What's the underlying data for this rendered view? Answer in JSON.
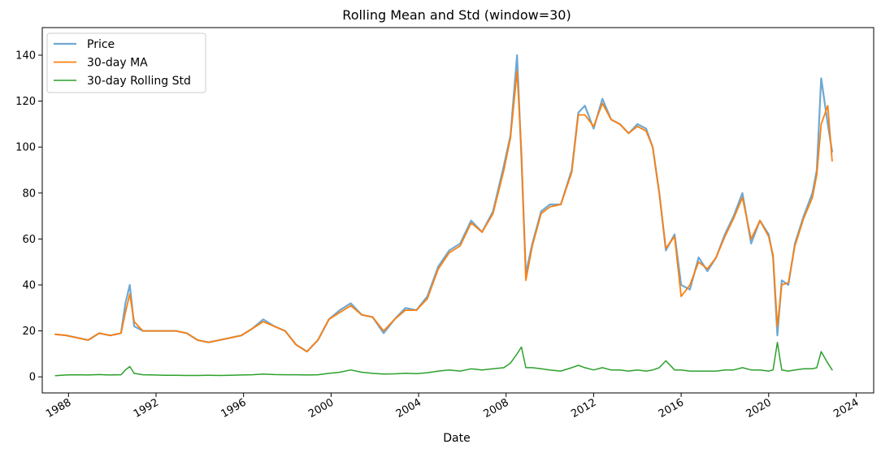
{
  "chart_data": {
    "type": "line",
    "title": "Rolling Mean and Std (window=30)",
    "xlabel": "Date",
    "ylabel": "",
    "xlim": [
      1986.8,
      2024.8
    ],
    "ylim": [
      -7,
      152
    ],
    "x_ticks": [
      1988,
      1992,
      1996,
      2000,
      2004,
      2008,
      2012,
      2016,
      2020,
      2024
    ],
    "y_ticks": [
      0,
      20,
      40,
      60,
      80,
      100,
      120,
      140
    ],
    "grid": false,
    "legend": "upper-left",
    "x": [
      1987.4,
      1987.9,
      1988.4,
      1988.9,
      1989.4,
      1989.9,
      1990.4,
      1990.6,
      1990.8,
      1991.0,
      1991.4,
      1991.9,
      1992.4,
      1992.9,
      1993.4,
      1993.9,
      1994.4,
      1994.9,
      1995.4,
      1995.9,
      1996.4,
      1996.9,
      1997.4,
      1997.9,
      1998.4,
      1998.9,
      1999.4,
      1999.9,
      2000.4,
      2000.9,
      2001.4,
      2001.9,
      2002.4,
      2002.9,
      2003.4,
      2003.9,
      2004.4,
      2004.9,
      2005.4,
      2005.9,
      2006.4,
      2006.9,
      2007.4,
      2007.9,
      2008.2,
      2008.5,
      2008.7,
      2008.9,
      2009.2,
      2009.6,
      2010.0,
      2010.5,
      2011.0,
      2011.3,
      2011.6,
      2012.0,
      2012.4,
      2012.8,
      2013.2,
      2013.6,
      2014.0,
      2014.4,
      2014.7,
      2015.0,
      2015.3,
      2015.7,
      2016.0,
      2016.4,
      2016.8,
      2017.2,
      2017.6,
      2018.0,
      2018.4,
      2018.8,
      2019.2,
      2019.6,
      2020.0,
      2020.2,
      2020.4,
      2020.6,
      2020.9,
      2021.2,
      2021.6,
      2022.0,
      2022.2,
      2022.4,
      2022.7,
      2022.9
    ],
    "series": [
      {
        "name": "Price",
        "color": "#6fa8d2",
        "values": [
          18.5,
          18,
          17,
          16,
          19,
          18,
          19,
          32,
          40,
          22,
          20,
          20,
          20,
          20,
          19,
          16,
          15,
          16,
          17,
          18,
          21,
          25,
          22,
          20,
          14,
          11,
          16,
          25,
          29,
          32,
          27,
          26,
          19,
          25,
          30,
          29,
          35,
          48,
          55,
          58,
          68,
          63,
          72,
          92,
          105,
          140,
          95,
          45,
          58,
          72,
          75,
          75,
          90,
          115,
          118,
          108,
          121,
          112,
          110,
          106,
          110,
          108,
          100,
          80,
          55,
          62,
          40,
          38,
          52,
          46,
          52,
          62,
          70,
          80,
          58,
          68,
          62,
          52,
          18,
          42,
          40,
          58,
          70,
          80,
          90,
          130,
          110,
          98
        ],
        "width": 2.2
      },
      {
        "name": "30-day MA",
        "color": "#ff7f0e",
        "values": [
          18.5,
          18,
          17,
          16,
          19,
          18,
          19,
          28,
          36,
          24,
          20,
          20,
          20,
          20,
          19,
          16,
          15,
          16,
          17,
          18,
          21,
          24,
          22,
          20,
          14,
          11,
          16,
          25,
          28,
          31,
          27,
          26,
          20,
          25,
          29,
          29,
          34,
          47,
          54,
          57,
          67,
          63,
          71,
          90,
          104,
          133,
          98,
          42,
          57,
          71,
          74,
          75,
          89,
          114,
          114,
          109,
          119,
          112,
          110,
          106,
          109,
          107,
          100,
          80,
          56,
          61,
          35,
          40,
          50,
          47,
          52,
          61,
          69,
          78,
          60,
          68,
          61,
          53,
          22,
          40,
          41,
          57,
          69,
          78,
          88,
          110,
          118,
          94
        ],
        "width": 1.8
      },
      {
        "name": "30-day Rolling Std",
        "color": "#2ca02c",
        "values": [
          0.5,
          0.8,
          0.9,
          0.8,
          1.0,
          0.8,
          0.9,
          3,
          4.5,
          1.5,
          0.9,
          0.8,
          0.7,
          0.7,
          0.6,
          0.6,
          0.7,
          0.6,
          0.7,
          0.8,
          0.9,
          1.2,
          1.0,
          0.9,
          0.9,
          0.8,
          0.9,
          1.5,
          2,
          3,
          2,
          1.5,
          1.2,
          1.3,
          1.6,
          1.4,
          1.8,
          2.5,
          3,
          2.5,
          3.5,
          3,
          3.5,
          4,
          6,
          10,
          13,
          4,
          4,
          3.5,
          3,
          2.5,
          4,
          5,
          4,
          3,
          4,
          3,
          3,
          2.5,
          3,
          2.5,
          3,
          4,
          7,
          3,
          3,
          2.5,
          2.5,
          2.5,
          2.5,
          3,
          3,
          4,
          3,
          3,
          2.5,
          3,
          15,
          3,
          2.5,
          3,
          3.5,
          3.5,
          4,
          11,
          6,
          3
        ],
        "width": 1.5
      }
    ]
  }
}
